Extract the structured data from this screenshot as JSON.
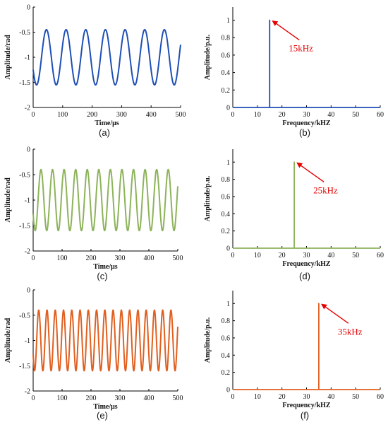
{
  "panel_labels": [
    "(a)",
    "(b)",
    "(c)",
    "(d)",
    "(e)",
    "(f)"
  ],
  "colors": {
    "blue": "#1f4fb5",
    "green": "#8db35a",
    "orange": "#e06020",
    "annotation": "#e60000"
  },
  "chart_data": [
    {
      "type": "line",
      "xlabel": "Time/μs",
      "ylabel": "Amplitude/rad",
      "xlim": [
        0,
        500
      ],
      "ylim": [
        -2,
        0
      ],
      "xticks": [
        "0",
        "100",
        "200",
        "300",
        "400",
        "500"
      ],
      "yticks": [
        "0",
        "-0.5",
        "-1",
        "-1.5",
        "-2"
      ],
      "grid": false,
      "color": "#1f4fb5",
      "series": [
        {
          "frequency_khz": 15,
          "center": -1.0,
          "amplitude": 0.55
        }
      ]
    },
    {
      "type": "line",
      "xlabel": "Frequency/kHZ",
      "ylabel": "Amplitude/p.u.",
      "xlim": [
        0,
        60
      ],
      "ylim": [
        0,
        1.15
      ],
      "xticks": [
        "0",
        "10",
        "20",
        "30",
        "40",
        "50",
        "60"
      ],
      "yticks": [
        "0",
        "0.2",
        "0.4",
        "0.6",
        "0.8",
        "1"
      ],
      "grid": false,
      "color": "#1f4fb5",
      "series": [
        {
          "x": [
            0,
            15,
            15,
            15,
            60
          ],
          "y": [
            0,
            0,
            1,
            0,
            0
          ]
        }
      ],
      "annotation": {
        "text": "15kHz",
        "point": [
          15,
          1
        ]
      }
    },
    {
      "type": "line",
      "xlabel": "Time/μs",
      "ylabel": "Amplitude/rad",
      "xlim": [
        0,
        500
      ],
      "ylim": [
        -2,
        0
      ],
      "xticks": [
        "0",
        "100",
        "200",
        "300",
        "400",
        "500"
      ],
      "yticks": [
        "0",
        "-0.5",
        "-1",
        "-1.5",
        "-2"
      ],
      "grid": false,
      "color": "#8db35a",
      "series": [
        {
          "frequency_khz": 25,
          "center": -1.0,
          "amplitude": 0.6
        }
      ]
    },
    {
      "type": "line",
      "xlabel": "Frequency/kHZ",
      "ylabel": "Amplitude/p.u.",
      "xlim": [
        0,
        60
      ],
      "ylim": [
        0,
        1.15
      ],
      "xticks": [
        "0",
        "10",
        "20",
        "30",
        "40",
        "50",
        "60"
      ],
      "yticks": [
        "0",
        "0.2",
        "0.4",
        "0.6",
        "0.8",
        "1"
      ],
      "grid": false,
      "color": "#8db35a",
      "series": [
        {
          "x": [
            0,
            25,
            25,
            25,
            60
          ],
          "y": [
            0,
            0,
            1,
            0,
            0
          ]
        }
      ],
      "annotation": {
        "text": "25kHz",
        "point": [
          25,
          1
        ]
      }
    },
    {
      "type": "line",
      "xlabel": "Time/μs",
      "ylabel": "Amplitude/rad",
      "xlim": [
        0,
        500
      ],
      "ylim": [
        -2,
        0
      ],
      "xticks": [
        "0",
        "100",
        "200",
        "300",
        "400",
        "500"
      ],
      "yticks": [
        "0",
        "-0.5",
        "-1",
        "-1.5",
        "-2"
      ],
      "grid": false,
      "color": "#e06020",
      "series": [
        {
          "frequency_khz": 35,
          "center": -1.0,
          "amplitude": 0.6
        }
      ]
    },
    {
      "type": "line",
      "xlabel": "Frequency/kHZ",
      "ylabel": "Amplitude/p.u.",
      "xlim": [
        0,
        60
      ],
      "ylim": [
        0,
        1.15
      ],
      "xticks": [
        "0",
        "10",
        "20",
        "30",
        "40",
        "50",
        "60"
      ],
      "yticks": [
        "0",
        "0.2",
        "0.4",
        "0.6",
        "0.8",
        "1"
      ],
      "grid": false,
      "color": "#e06020",
      "series": [
        {
          "x": [
            0,
            35,
            35,
            35,
            60
          ],
          "y": [
            0,
            0,
            1,
            0,
            0
          ]
        }
      ],
      "annotation": {
        "text": "35kHz",
        "point": [
          35,
          1
        ]
      }
    }
  ]
}
